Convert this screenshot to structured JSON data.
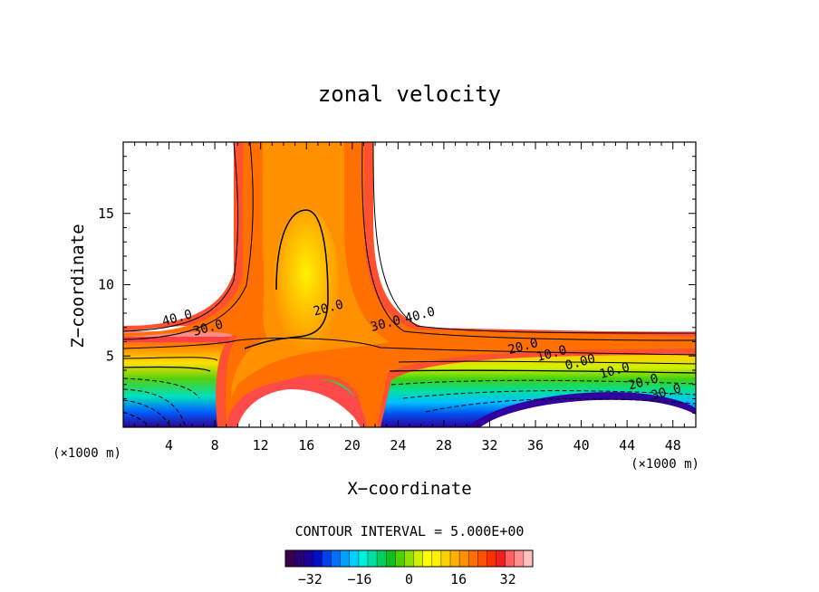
{
  "chart_data": {
    "type": "heatmap",
    "title": "zonal velocity",
    "xlabel": "X−coordinate",
    "ylabel": "Z−coordinate",
    "x_unit_left": "(×1000 m)",
    "x_unit_right": "(×1000 m)",
    "xlim": [
      0,
      50
    ],
    "ylim": [
      0,
      20
    ],
    "x_ticks": [
      4,
      8,
      12,
      16,
      20,
      24,
      28,
      32,
      36,
      40,
      44,
      48
    ],
    "x_tick_labels": [
      "4",
      "8",
      "12",
      "16",
      "20",
      "24",
      "28",
      "32",
      "36",
      "40",
      "44",
      "48"
    ],
    "y_ticks": [
      5,
      10,
      15
    ],
    "y_tick_labels": [
      "5",
      "10",
      "15"
    ],
    "contour_interval_text": "CONTOUR INTERVAL = 5.000E+00",
    "contour_labels": [
      {
        "text": "40.0",
        "x": 4.8,
        "y": 7.4
      },
      {
        "text": "30.0",
        "x": 7.5,
        "y": 6.7
      },
      {
        "text": "20.0",
        "x": 18.0,
        "y": 8.1
      },
      {
        "text": "30.0",
        "x": 23.0,
        "y": 7.0
      },
      {
        "text": "40.0",
        "x": 26.0,
        "y": 7.6
      },
      {
        "text": "20.0",
        "x": 35.0,
        "y": 5.4
      },
      {
        "text": "10.0",
        "x": 37.5,
        "y": 4.9
      },
      {
        "text": "0.00",
        "x": 40.0,
        "y": 4.3
      },
      {
        "text": "10.0",
        "x": 43.0,
        "y": 3.7
      },
      {
        "text": "20.0",
        "x": 45.5,
        "y": 2.9
      },
      {
        "text": "30.0",
        "x": 47.5,
        "y": 2.2
      }
    ],
    "colorbar": {
      "range": [
        -40,
        40
      ],
      "ticks": [
        -32,
        -16,
        0,
        16,
        32
      ],
      "tick_labels": [
        "−32",
        "−16",
        "0",
        "16",
        "32"
      ],
      "colors": [
        "#3a0050",
        "#2a0070",
        "#1a0098",
        "#0010c8",
        "#0040e8",
        "#0070ff",
        "#00a0ff",
        "#00d0ff",
        "#00f0e0",
        "#00e0a0",
        "#00d060",
        "#10c020",
        "#50d000",
        "#90e000",
        "#d0f000",
        "#ffff00",
        "#fff000",
        "#ffd000",
        "#ffb000",
        "#ff9000",
        "#ff7000",
        "#ff5000",
        "#ff3000",
        "#f02020",
        "#ff6060",
        "#ff9090",
        "#ffc0c0"
      ]
    }
  }
}
